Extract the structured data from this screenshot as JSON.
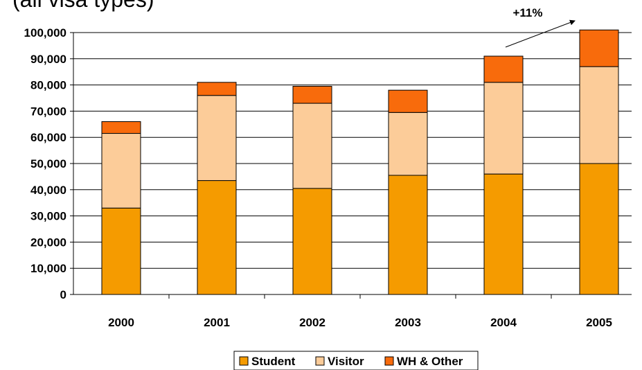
{
  "chart_data": {
    "type": "stacked_bar",
    "title": "(all visa types)",
    "annotation": "+11%",
    "categories": [
      "2000",
      "2001",
      "2002",
      "2003",
      "2004",
      "2005"
    ],
    "series": [
      {
        "name": "Student",
        "color": "#f59b00",
        "values": [
          33000,
          43500,
          40500,
          45500,
          46000,
          50000
        ]
      },
      {
        "name": "Visitor",
        "color": "#fccc99",
        "values": [
          28500,
          32500,
          32500,
          24000,
          35000,
          37000
        ]
      },
      {
        "name": "WH & Other",
        "color": "#f86b0c",
        "values": [
          4500,
          5000,
          6500,
          8500,
          10000,
          14000
        ]
      }
    ],
    "ylim": [
      0,
      100000
    ],
    "yticks": [
      0,
      {
        "value": 10000,
        "label": "10,000"
      },
      {
        "value": 20000,
        "label": "20,000"
      },
      {
        "value": 30000,
        "label": "30,000"
      },
      {
        "value": 40000,
        "label": "40,000"
      },
      {
        "value": 50000,
        "label": "50,000"
      },
      {
        "value": 60000,
        "label": "60,000"
      },
      {
        "value": 70000,
        "label": "70,000"
      },
      {
        "value": 80000,
        "label": "80,000"
      },
      {
        "value": 90000,
        "label": "90,000"
      },
      {
        "value": 100000,
        "label": "100,000"
      }
    ],
    "grid": true,
    "legend": "bottom"
  }
}
